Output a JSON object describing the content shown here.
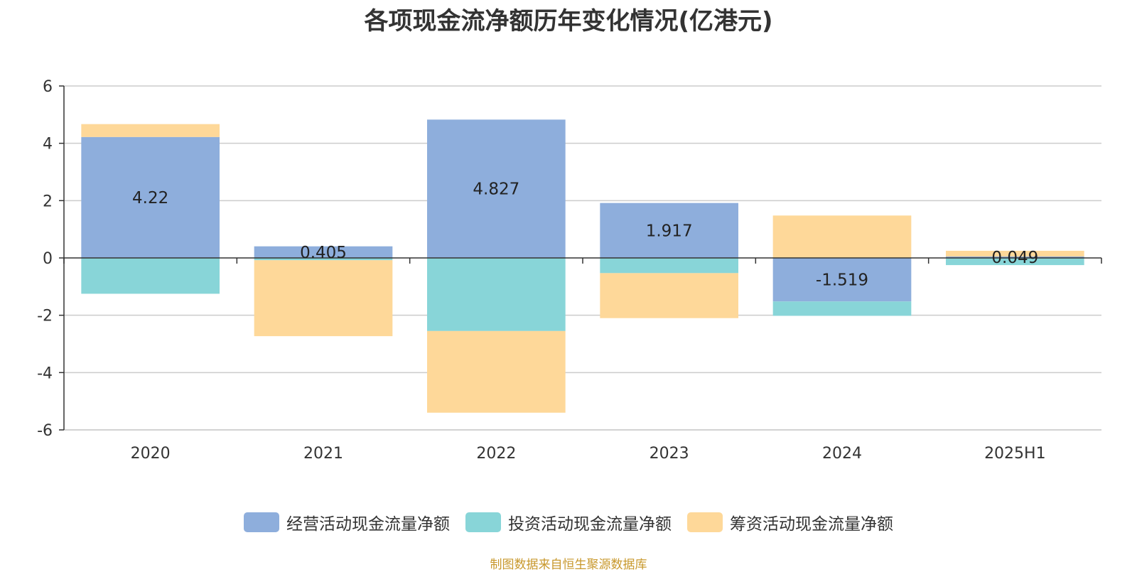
{
  "chart_data": {
    "type": "bar",
    "stacked": true,
    "title": "各项现金流净额历年变化情况(亿港元)",
    "categories": [
      "2020",
      "2021",
      "2022",
      "2023",
      "2024",
      "2025H1"
    ],
    "series": [
      {
        "name": "经营活动现金流量净额",
        "color": "#8eaedc",
        "values": [
          4.22,
          0.405,
          4.827,
          1.917,
          -1.519,
          0.049
        ],
        "labels": [
          "4.22",
          "0.405",
          "4.827",
          "1.917",
          "-1.519",
          "0.049"
        ]
      },
      {
        "name": "投资活动现金流量净额",
        "color": "#88d5d8",
        "values": [
          -1.25,
          -0.08,
          -2.55,
          -0.53,
          -0.5,
          -0.25
        ]
      },
      {
        "name": "筹资活动现金流量净额",
        "color": "#fed899",
        "values": [
          0.45,
          -2.65,
          -2.85,
          -1.57,
          1.48,
          0.2
        ]
      }
    ],
    "ylim": [
      -6,
      6
    ],
    "yticks": [
      -6,
      -4,
      -2,
      0,
      2,
      4,
      6
    ],
    "grid": true,
    "legend_position": "bottom"
  },
  "source_note": "制图数据来自恒生聚源数据库"
}
